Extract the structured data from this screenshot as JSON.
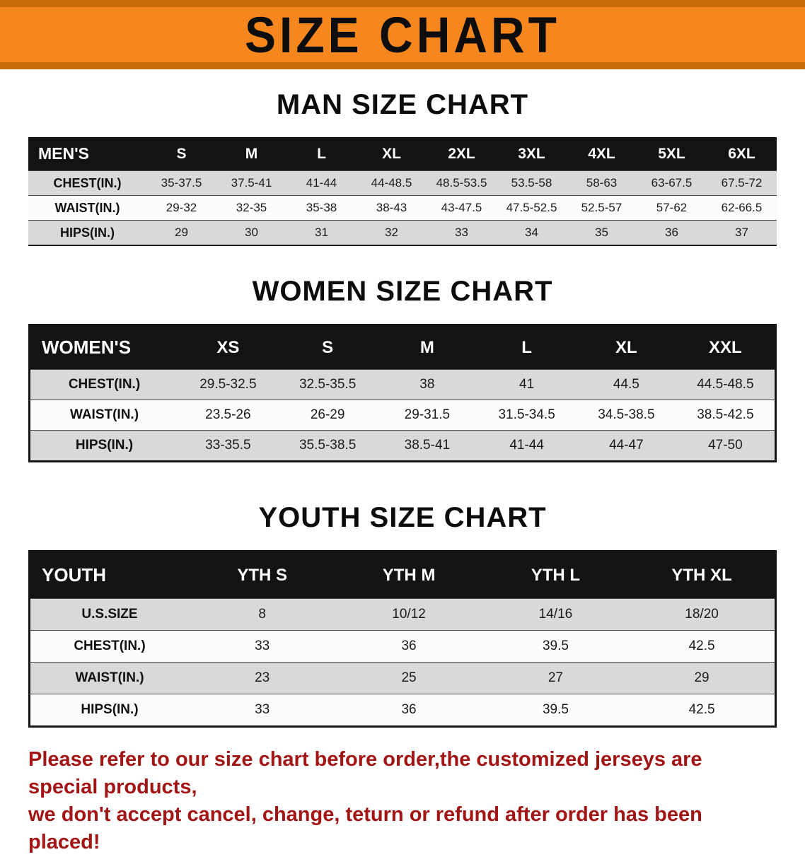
{
  "banner": {
    "title": "SIZE CHART",
    "bg": "#f5871e",
    "stripe": "#c86a08"
  },
  "sections": [
    {
      "heading": "MAN SIZE CHART",
      "table": {
        "header": [
          "MEN'S",
          "S",
          "M",
          "L",
          "XL",
          "2XL",
          "3XL",
          "4XL",
          "5XL",
          "6XL"
        ],
        "rows": [
          {
            "label": "CHEST(IN.)",
            "values": [
              "35-37.5",
              "37.5-41",
              "41-44",
              "44-48.5",
              "48.5-53.5",
              "53.5-58",
              "58-63",
              "63-67.5",
              "67.5-72"
            ]
          },
          {
            "label": "WAIST(IN.)",
            "values": [
              "29-32",
              "32-35",
              "35-38",
              "38-43",
              "43-47.5",
              "47.5-52.5",
              "52.5-57",
              "57-62",
              "62-66.5"
            ]
          },
          {
            "label": "HIPS(IN.)",
            "values": [
              "29",
              "30",
              "31",
              "32",
              "33",
              "34",
              "35",
              "36",
              "37"
            ]
          }
        ]
      }
    },
    {
      "heading": "WOMEN SIZE CHART",
      "table": {
        "header": [
          "WOMEN'S",
          "XS",
          "S",
          "M",
          "L",
          "XL",
          "XXL"
        ],
        "rows": [
          {
            "label": "CHEST(IN.)",
            "values": [
              "29.5-32.5",
              "32.5-35.5",
              "38",
              "41",
              "44.5",
              "44.5-48.5"
            ]
          },
          {
            "label": "WAIST(IN.)",
            "values": [
              "23.5-26",
              "26-29",
              "29-31.5",
              "31.5-34.5",
              "34.5-38.5",
              "38.5-42.5"
            ]
          },
          {
            "label": "HIPS(IN.)",
            "values": [
              "33-35.5",
              "35.5-38.5",
              "38.5-41",
              "41-44",
              "44-47",
              "47-50"
            ]
          }
        ]
      }
    },
    {
      "heading": "YOUTH SIZE CHART",
      "table": {
        "header": [
          "YOUTH",
          "YTH S",
          "YTH M",
          "YTH L",
          "YTH XL"
        ],
        "rows": [
          {
            "label": "U.S.SIZE",
            "values": [
              "8",
              "10/12",
              "14/16",
              "18/20"
            ]
          },
          {
            "label": "CHEST(IN.)",
            "values": [
              "33",
              "36",
              "39.5",
              "42.5"
            ]
          },
          {
            "label": "WAIST(IN.)",
            "values": [
              "23",
              "25",
              "27",
              "29"
            ]
          },
          {
            "label": "HIPS(IN.)",
            "values": [
              "33",
              "36",
              "39.5",
              "42.5"
            ]
          }
        ]
      }
    }
  ],
  "footer": {
    "color": "#a31515",
    "lines": [
      "Please refer to our size chart before order,the customized jerseys are special products,",
      "we don't accept cancel, change, teturn or refund after order has been placed!"
    ]
  }
}
